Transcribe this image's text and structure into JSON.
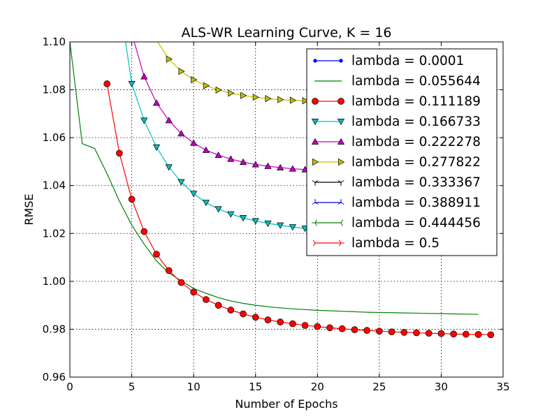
{
  "chart_data": {
    "type": "line",
    "title": "ALS-WR Learning Curve,  K = 16",
    "xlabel": "Number of Epochs",
    "ylabel": "RMSE",
    "xlim": [
      0,
      35
    ],
    "ylim": [
      0.96,
      1.1
    ],
    "xticks": [
      "0",
      "5",
      "10",
      "15",
      "20",
      "25",
      "30",
      "35"
    ],
    "yticks": [
      "0.96",
      "0.98",
      "1.00",
      "1.02",
      "1.04",
      "1.06",
      "1.08",
      "1.10"
    ],
    "grid": true,
    "legend_position": "top-right",
    "series": [
      {
        "name": "lambda = 0.0001",
        "color": "#0000ff",
        "marker": "point",
        "x": [],
        "y": []
      },
      {
        "name": "lambda = 0.055644",
        "color": "#008000",
        "marker": "none",
        "x": [
          0,
          1,
          2,
          3,
          4,
          5,
          6,
          7,
          8,
          9,
          10,
          11,
          12,
          13,
          14,
          15,
          16,
          17,
          18,
          19,
          20,
          21,
          22,
          23,
          24,
          25,
          26,
          27,
          28,
          29,
          30,
          31,
          32,
          33
        ],
        "y": [
          1.1,
          1.0575,
          1.0555,
          1.045,
          1.0335,
          1.0235,
          1.0155,
          1.0085,
          1.0035,
          1.0002,
          0.997,
          0.995,
          0.9932,
          0.9918,
          0.9908,
          0.99,
          0.9894,
          0.9889,
          0.9885,
          0.9882,
          0.9879,
          0.9877,
          0.9875,
          0.9873,
          0.9871,
          0.987,
          0.9869,
          0.9868,
          0.9867,
          0.9866,
          0.9865,
          0.9864,
          0.9863,
          0.9862
        ]
      },
      {
        "name": "lambda = 0.111189",
        "color": "#ff0000",
        "marker": "circle",
        "x": [
          3,
          4,
          5,
          6,
          7,
          8,
          9,
          10,
          11,
          12,
          13,
          14,
          15,
          16,
          17,
          18,
          19,
          20,
          21,
          22,
          23,
          24,
          25,
          26,
          27,
          28,
          29,
          30,
          31,
          32,
          33,
          34
        ],
        "y": [
          1.0825,
          1.0535,
          1.0343,
          1.0208,
          1.0113,
          1.0045,
          0.9995,
          0.9955,
          0.9924,
          0.99,
          0.988,
          0.9864,
          0.985,
          0.9839,
          0.983,
          0.9823,
          0.9816,
          0.9811,
          0.9806,
          0.9802,
          0.9798,
          0.9795,
          0.9792,
          0.9789,
          0.9787,
          0.9785,
          0.9783,
          0.9782,
          0.978,
          0.9779,
          0.9778,
          0.9777
        ]
      },
      {
        "name": "lambda = 0.166733",
        "color": "#00bfbf",
        "marker": "triangle-down",
        "x": [
          4.5,
          5,
          6,
          7,
          8,
          9,
          10,
          11,
          12,
          13,
          14,
          15,
          16,
          17,
          18,
          19
        ],
        "y": [
          1.1,
          1.0825,
          1.0672,
          1.056,
          1.0477,
          1.0415,
          1.0366,
          1.0329,
          1.0302,
          1.0281,
          1.0265,
          1.0252,
          1.0242,
          1.0234,
          1.0227,
          1.0221
        ]
      },
      {
        "name": "lambda = 0.222278",
        "color": "#bf00bf",
        "marker": "triangle-up",
        "x": [
          5.2,
          6,
          7,
          8,
          9,
          10,
          11,
          12,
          13,
          14,
          15,
          16,
          17,
          18,
          19
        ],
        "y": [
          1.1,
          1.0855,
          1.0745,
          1.0672,
          1.0617,
          1.0578,
          1.0548,
          1.0527,
          1.0511,
          1.0498,
          1.0488,
          1.0481,
          1.0475,
          1.047,
          1.0467
        ]
      },
      {
        "name": "lambda = 0.277822",
        "color": "#bfbf00",
        "marker": "triangle-right",
        "x": [
          7.1,
          8,
          9,
          10,
          11,
          12,
          13,
          14,
          15,
          16,
          17,
          18,
          19
        ],
        "y": [
          1.1,
          1.0928,
          1.0877,
          1.0842,
          1.0817,
          1.0799,
          1.0786,
          1.0776,
          1.0769,
          1.0763,
          1.0759,
          1.0756,
          1.0754
        ]
      },
      {
        "name": "lambda = 0.333367",
        "color": "#000000",
        "marker": "tri-down",
        "x": [],
        "y": []
      },
      {
        "name": "lambda = 0.388911",
        "color": "#0000ff",
        "marker": "tri-up",
        "x": [],
        "y": []
      },
      {
        "name": "lambda = 0.444456",
        "color": "#008000",
        "marker": "tri-left",
        "x": [],
        "y": []
      },
      {
        "name": "lambda = 0.5",
        "color": "#ff0000",
        "marker": "tri-right",
        "x": [],
        "y": []
      }
    ]
  }
}
